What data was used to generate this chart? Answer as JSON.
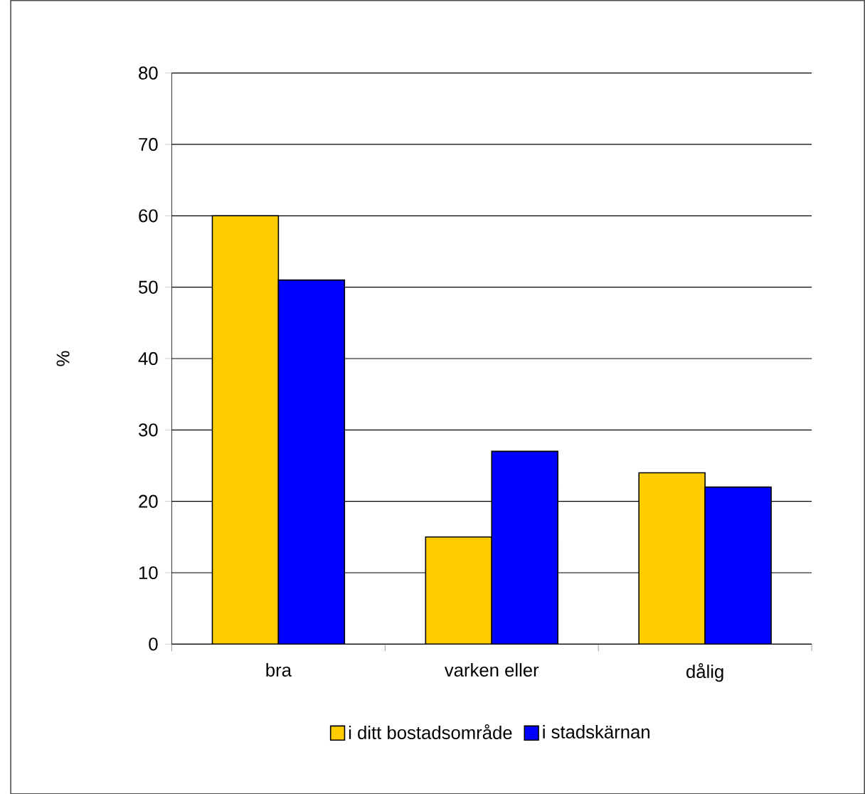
{
  "chart_data": {
    "type": "bar",
    "ylabel": "%",
    "categories": [
      "bra",
      "varken eller",
      "dålig"
    ],
    "series": [
      {
        "name": "i ditt bostadsområde",
        "color": "#ffcc00",
        "values": [
          60,
          15,
          24
        ]
      },
      {
        "name": "i stadskärnan",
        "color": "#0000ff",
        "values": [
          51,
          27,
          22
        ]
      }
    ],
    "ylim": [
      0,
      80
    ],
    "yticks": [
      0,
      10,
      20,
      30,
      40,
      50,
      60,
      70,
      80
    ],
    "grid": "y",
    "legend": "bottom"
  }
}
